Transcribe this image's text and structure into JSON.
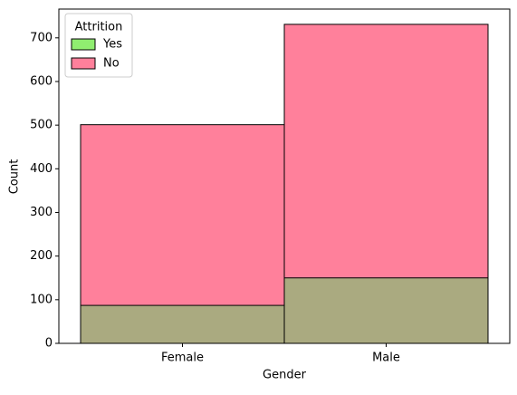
{
  "chart_data": {
    "type": "bar",
    "layout": "layered",
    "xlabel": "Gender",
    "ylabel": "Count",
    "categories": [
      "Female",
      "Male"
    ],
    "series": [
      {
        "name": "No",
        "color": "#ff809b",
        "values": [
          501,
          731
        ]
      },
      {
        "name": "Yes",
        "color": "#90ee70",
        "values": [
          87,
          150
        ]
      }
    ],
    "legend_title": "Attrition",
    "legend_order": [
      "Yes",
      "No"
    ],
    "legend": "upper left",
    "ylim": [
      0,
      766
    ],
    "yticks": [
      0,
      100,
      200,
      300,
      400,
      500,
      600,
      700
    ],
    "grid": false
  }
}
